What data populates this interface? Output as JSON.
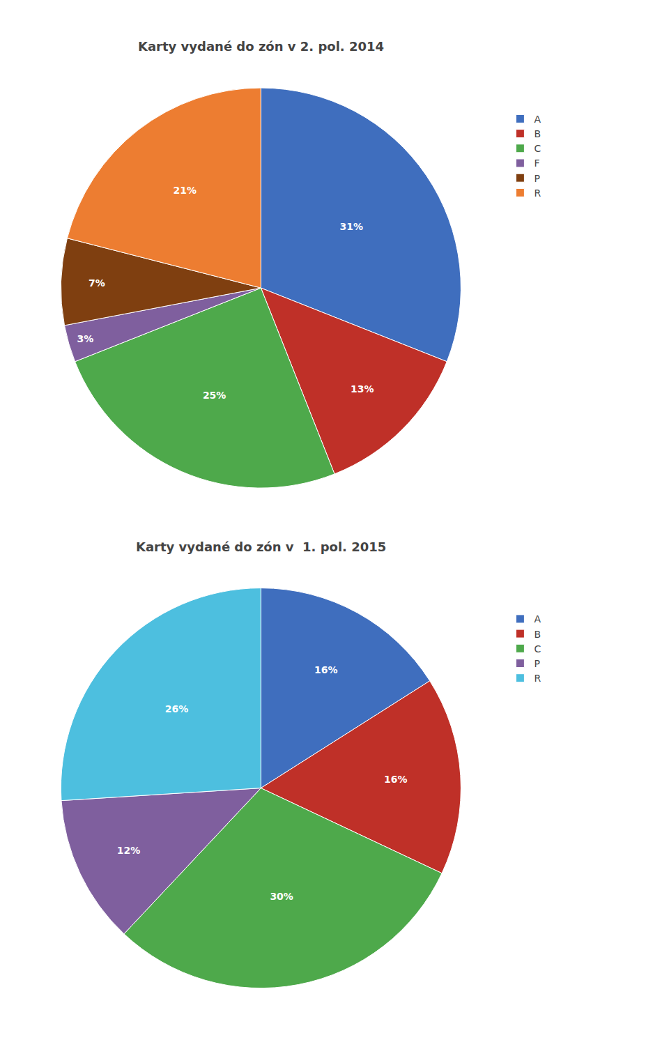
{
  "chart_data": [
    {
      "type": "pie",
      "title": "Karty vydané do zón v 2. pol. 2014",
      "categories": [
        "A",
        "B",
        "C",
        "F",
        "P",
        "R"
      ],
      "values": [
        31,
        13,
        25,
        3,
        7,
        21
      ],
      "value_labels": [
        "31%",
        "13%",
        "25%",
        "3%",
        "7%",
        "21%"
      ],
      "colors": [
        "#3f6ebe",
        "#bf3028",
        "#4ea94b",
        "#7f5f9e",
        "#7f3f10",
        "#ed7d31"
      ],
      "data_labels": true,
      "legend": "right"
    },
    {
      "type": "pie",
      "title": "Karty vydané do zón v  1. pol. 2015",
      "categories": [
        "A",
        "B",
        "C",
        "P",
        "R"
      ],
      "values": [
        16,
        16,
        30,
        12,
        26
      ],
      "value_labels": [
        "16%",
        "16%",
        "30%",
        "12%",
        "26%"
      ],
      "colors": [
        "#3f6ebe",
        "#bf3028",
        "#4ea94b",
        "#7f5f9e",
        "#4dbfdf"
      ],
      "data_labels": true,
      "legend": "right"
    }
  ]
}
